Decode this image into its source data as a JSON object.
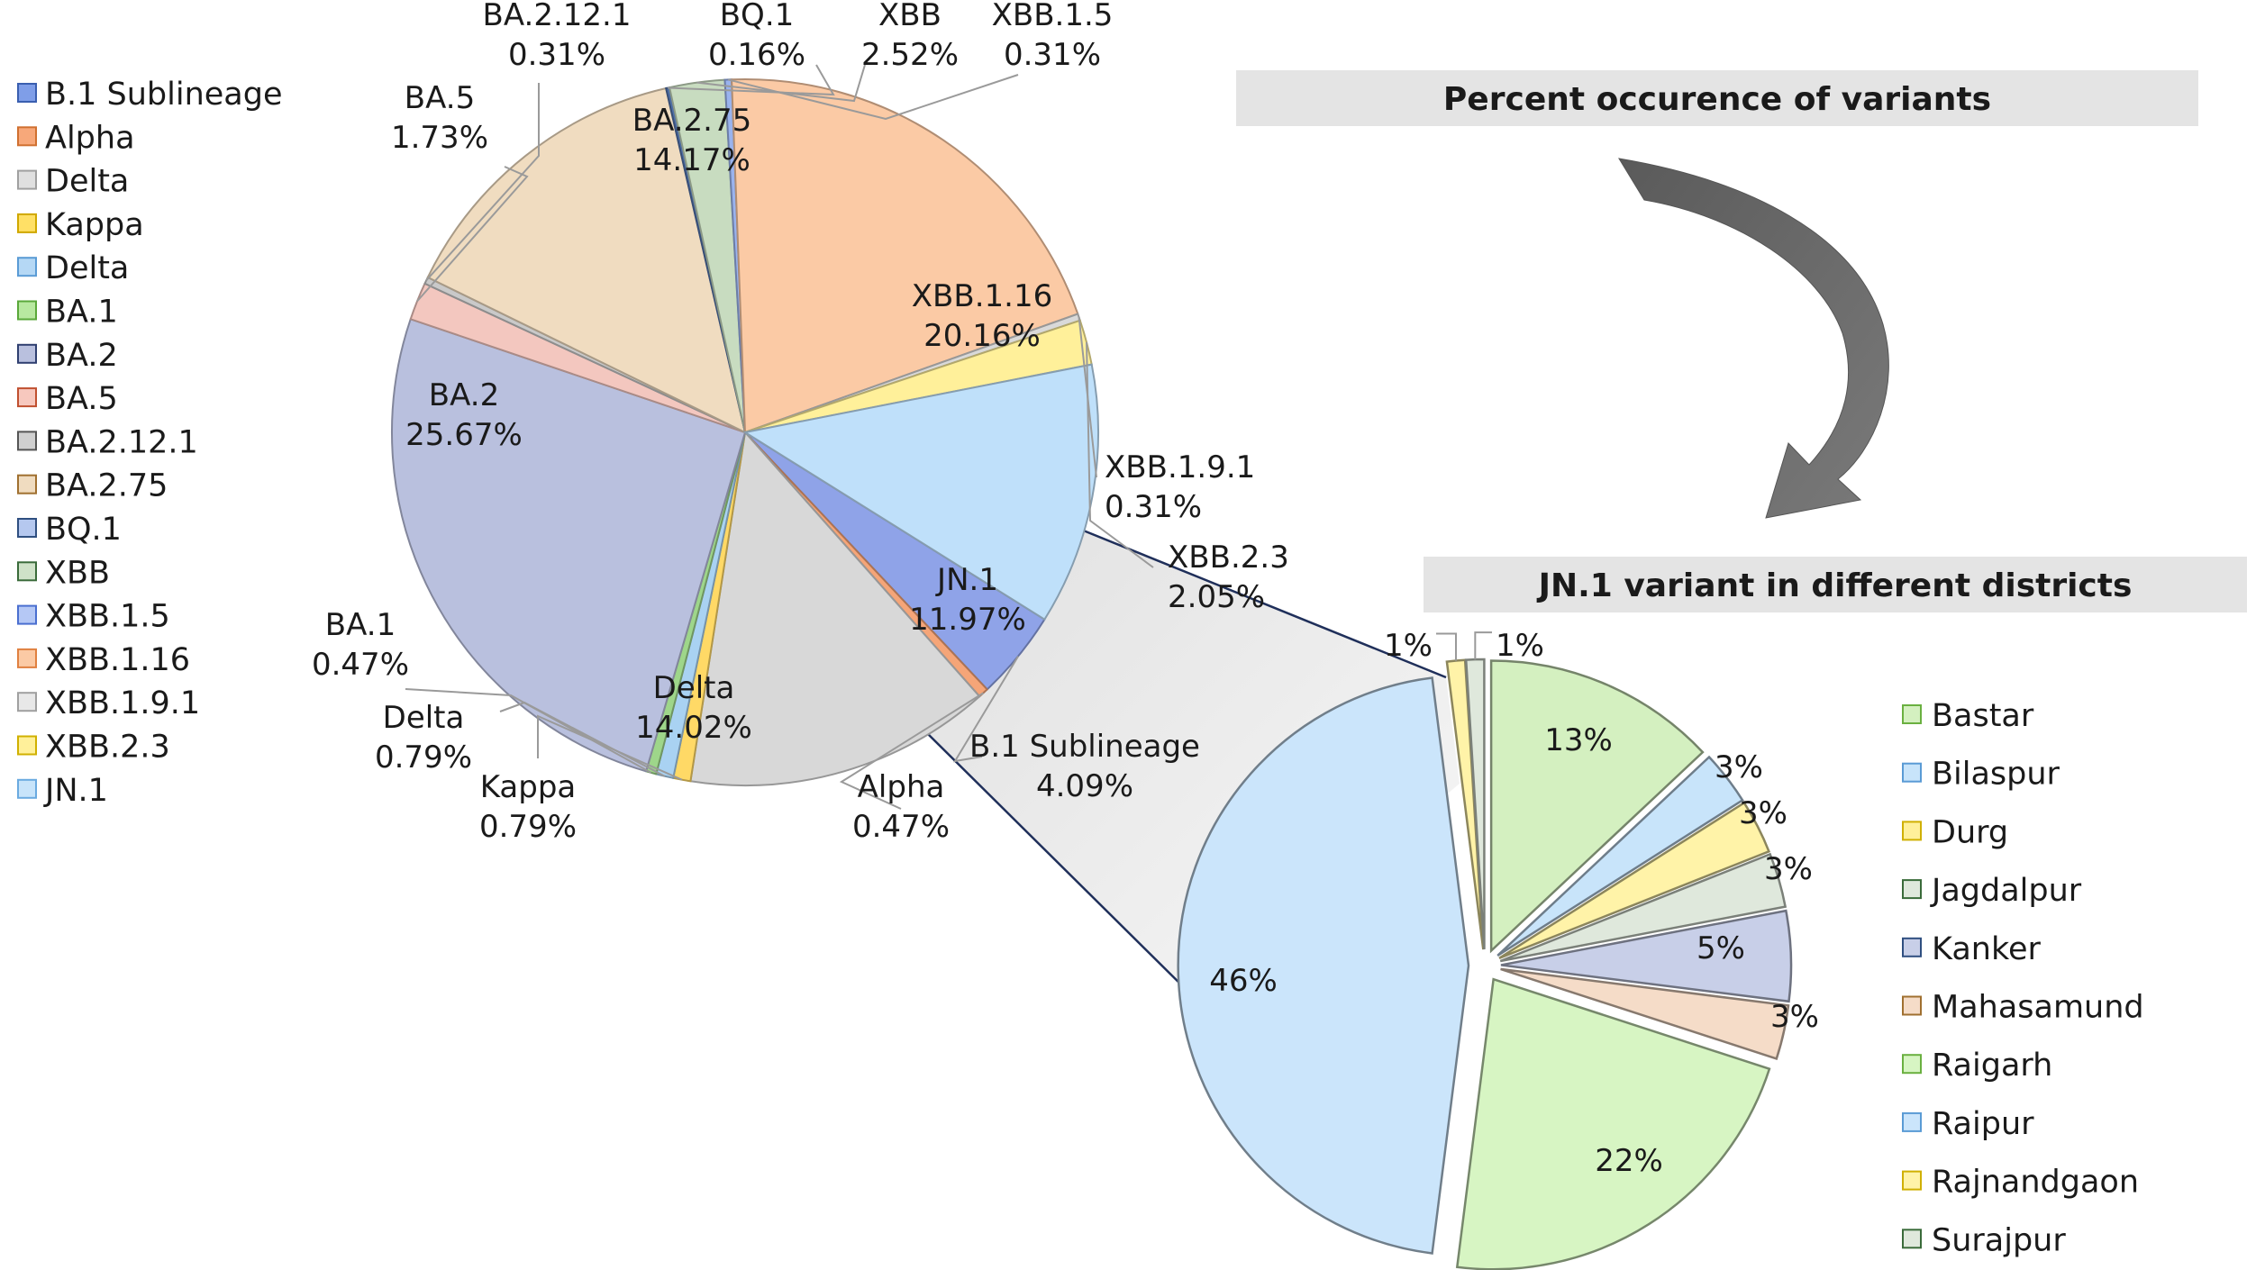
{
  "chart_data": [
    {
      "type": "pie",
      "title": "Percent occurence of variants",
      "unit": "%",
      "legend_position": "left",
      "slices": [
        {
          "name": "B.1 Sublineage",
          "value": 4.09,
          "label": "4.09%",
          "color": "#8fa3e8"
        },
        {
          "name": "Alpha",
          "value": 0.47,
          "label": "0.47%",
          "color": "#f5a578"
        },
        {
          "name": "Delta",
          "value": 14.02,
          "label": "14.02%",
          "color": "#d8d8d8"
        },
        {
          "name": "Kappa",
          "value": 0.79,
          "label": "0.79%",
          "color": "#ffd966"
        },
        {
          "name": "Delta",
          "value": 0.79,
          "label": "0.79%",
          "color": "#a9d2f2"
        },
        {
          "name": "BA.1",
          "value": 0.47,
          "label": "0.47%",
          "color": "#9ed68a"
        },
        {
          "name": "BA.2",
          "value": 25.67,
          "label": "25.67%",
          "color": "#b9c0de"
        },
        {
          "name": "BA.5",
          "value": 1.73,
          "label": "1.73%",
          "color": "#f3c7bf"
        },
        {
          "name": "BA.2.12.1",
          "value": 0.31,
          "label": "0.31%",
          "color": "#c9c9c9"
        },
        {
          "name": "BA.2.75",
          "value": 14.17,
          "label": "14.17%",
          "color": "#f0dcc0"
        },
        {
          "name": "BQ.1",
          "value": 0.16,
          "label": "0.16%",
          "color": "#4f6fa8"
        },
        {
          "name": "XBB",
          "value": 2.52,
          "label": "2.52%",
          "color": "#c8dcc0"
        },
        {
          "name": "XBB.1.5",
          "value": 0.31,
          "label": "0.31%",
          "color": "#9ab3ee"
        },
        {
          "name": "XBB.1.16",
          "value": 20.16,
          "label": "20.16%",
          "color": "#fbcaa5"
        },
        {
          "name": "XBB.1.9.1",
          "value": 0.31,
          "label": "0.31%",
          "color": "#d9d9d9"
        },
        {
          "name": "XBB.2.3",
          "value": 2.05,
          "label": "2.05%",
          "color": "#fff09a"
        },
        {
          "name": "JN.1",
          "value": 11.97,
          "label": "11.97%",
          "color": "#bfe0fa"
        }
      ],
      "legend": [
        {
          "name": "B.1 Sublineage",
          "color": "#7f9ee8",
          "border": "#3a5fb0"
        },
        {
          "name": "Alpha",
          "color": "#f7a87a",
          "border": "#d07030"
        },
        {
          "name": "Delta",
          "color": "#e0e0e0",
          "border": "#a0a0a0"
        },
        {
          "name": "Kappa",
          "color": "#ffe066",
          "border": "#d0a800"
        },
        {
          "name": "Delta",
          "color": "#b5d8f5",
          "border": "#5a9bd5"
        },
        {
          "name": "BA.1",
          "color": "#b8e8a0",
          "border": "#5aa83a"
        },
        {
          "name": "BA.2",
          "color": "#b9c0de",
          "border": "#2f3f70"
        },
        {
          "name": "BA.5",
          "color": "#f7c8be",
          "border": "#c05030"
        },
        {
          "name": "BA.2.12.1",
          "color": "#d0d0d0",
          "border": "#555555"
        },
        {
          "name": "BA.2.75",
          "color": "#f0dcc0",
          "border": "#a07030"
        },
        {
          "name": "BQ.1",
          "color": "#b5c8ef",
          "border": "#2f4f80"
        },
        {
          "name": "XBB",
          "color": "#cfe2c8",
          "border": "#3a6b3a"
        },
        {
          "name": "XBB.1.5",
          "color": "#b5c8f5",
          "border": "#4a6fd0"
        },
        {
          "name": "XBB.1.16",
          "color": "#fbcaa5",
          "border": "#e08040"
        },
        {
          "name": "XBB.1.9.1",
          "color": "#e8e8e8",
          "border": "#a0a0a0"
        },
        {
          "name": "XBB.2.3",
          "color": "#fff09a",
          "border": "#d0b000"
        },
        {
          "name": "JN.1",
          "color": "#c8e4fa",
          "border": "#6aaae0"
        }
      ]
    },
    {
      "type": "pie",
      "title": "JN.1 variant in different districts",
      "unit": "%",
      "exploded": true,
      "legend_position": "right",
      "slices": [
        {
          "name": "Bastar",
          "value": 13,
          "label": "13%",
          "color": "#d4f0c0"
        },
        {
          "name": "Bilaspur",
          "value": 3,
          "label": "3%",
          "color": "#c8e4fa"
        },
        {
          "name": "Durg",
          "value": 3,
          "label": "3%",
          "color": "#fff3a8"
        },
        {
          "name": "Jagdalpur",
          "value": 3,
          "label": "3%",
          "color": "#dfe8dc"
        },
        {
          "name": "Kanker",
          "value": 5,
          "label": "5%",
          "color": "#c8cfe8"
        },
        {
          "name": "Mahasamund",
          "value": 3,
          "label": "3%",
          "color": "#f5dcc8"
        },
        {
          "name": "Raigarh",
          "value": 22,
          "label": "22%",
          "color": "#d7f5c3"
        },
        {
          "name": "Raipur",
          "value": 46,
          "label": "46%",
          "color": "#cbe5fb"
        },
        {
          "name": "Rajnandgaon",
          "value": 1,
          "label": "1%",
          "color": "#fff3a8"
        },
        {
          "name": "Surajpur",
          "value": 1,
          "label": "1%",
          "color": "#dfe8dc"
        }
      ],
      "legend": [
        {
          "name": "Bastar",
          "color": "#d4f0c0",
          "border": "#6ab040"
        },
        {
          "name": "Bilaspur",
          "color": "#c8e4fa",
          "border": "#5a9bd5"
        },
        {
          "name": "Durg",
          "color": "#fff09a",
          "border": "#d0b000"
        },
        {
          "name": "Jagdalpur",
          "color": "#dfe8dc",
          "border": "#3a6b3a"
        },
        {
          "name": "Kanker",
          "color": "#c8cfe8",
          "border": "#2f4f80"
        },
        {
          "name": "Mahasamund",
          "color": "#f5dcc8",
          "border": "#a07030"
        },
        {
          "name": "Raigarh",
          "color": "#d7f5c3",
          "border": "#6ab040"
        },
        {
          "name": "Raipur",
          "color": "#cbe5fb",
          "border": "#5a9bd5"
        },
        {
          "name": "Rajnandgaon",
          "color": "#fff3a8",
          "border": "#d0b000"
        },
        {
          "name": "Surajpur",
          "color": "#dfe8dc",
          "border": "#3a6b3a"
        }
      ]
    }
  ]
}
